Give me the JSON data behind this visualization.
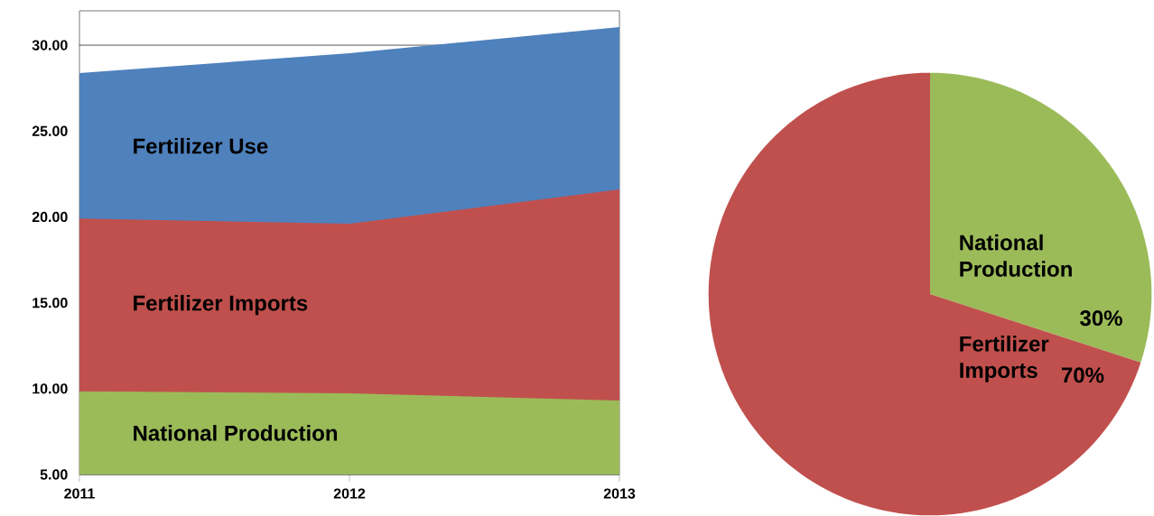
{
  "chart_data": [
    {
      "type": "area",
      "categories": [
        "2011",
        "2012",
        "2013"
      ],
      "series": [
        {
          "name": "Fertilizer Use",
          "color": "#4f81bd",
          "values": [
            28.37,
            29.53,
            31.05
          ]
        },
        {
          "name": "Fertilizer Imports",
          "color": "#c0504d",
          "values": [
            19.9,
            19.6,
            21.6
          ]
        },
        {
          "name": "National Production",
          "color": "#9bbb59",
          "values": [
            9.84,
            9.73,
            9.31
          ]
        }
      ],
      "ylim": [
        5,
        32
      ],
      "yticks": [
        {
          "value": 5,
          "label": "5.00"
        },
        {
          "value": 10,
          "label": "10.00"
        },
        {
          "value": 15,
          "label": "15.00"
        },
        {
          "value": 20,
          "label": "20.00"
        },
        {
          "value": 25,
          "label": "25.00"
        },
        {
          "value": 30,
          "label": "30.00"
        }
      ],
      "grid": "y"
    },
    {
      "type": "pie",
      "categories": [
        "National Production",
        "Fertilizer Imports"
      ],
      "values": [
        30,
        70
      ],
      "colors": [
        "#9bbb59",
        "#c0504d"
      ],
      "value_labels": [
        "30%",
        "70%"
      ]
    }
  ]
}
